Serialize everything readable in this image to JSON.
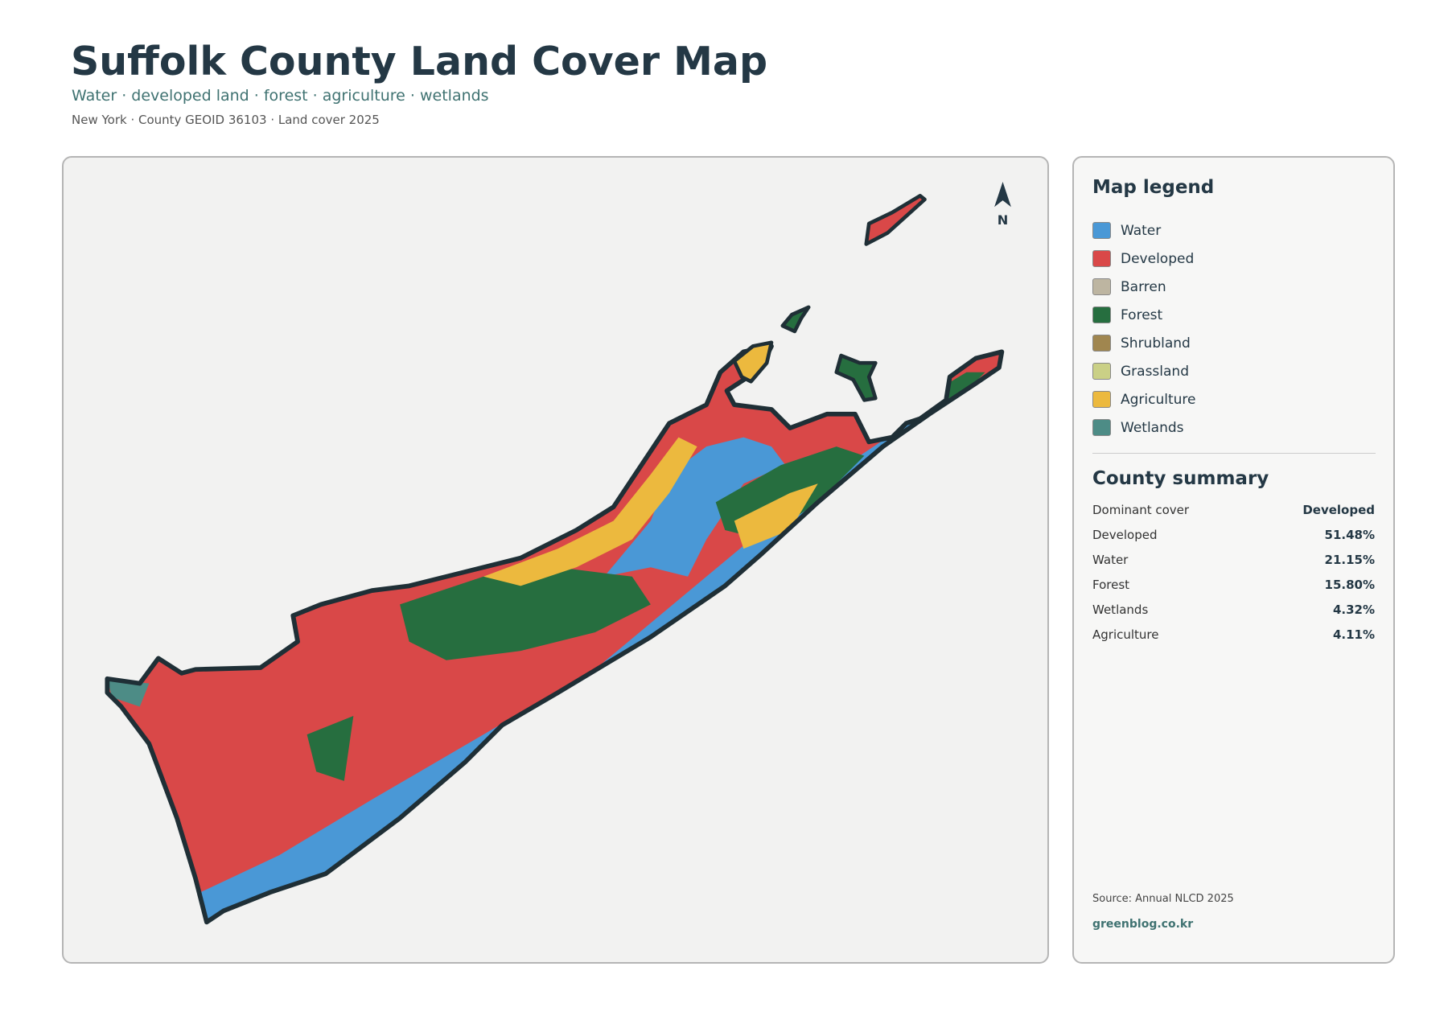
{
  "header": {
    "title": "Suffolk County Land Cover Map",
    "subtitle": "Water · developed land · forest · agriculture · wetlands",
    "meta": "New York · County GEOID 36103 · Land cover 2025"
  },
  "map": {
    "north_label": "N"
  },
  "legend": {
    "title": "Map legend",
    "items": [
      {
        "label": "Water",
        "color": "#4a98d6"
      },
      {
        "label": "Developed",
        "color": "#d94848"
      },
      {
        "label": "Barren",
        "color": "#bdb5a1"
      },
      {
        "label": "Forest",
        "color": "#266e3f"
      },
      {
        "label": "Shrubland",
        "color": "#a0864f"
      },
      {
        "label": "Grassland",
        "color": "#cad086"
      },
      {
        "label": "Agriculture",
        "color": "#ecb93e"
      },
      {
        "label": "Wetlands",
        "color": "#4d8c86"
      }
    ]
  },
  "summary": {
    "title": "County summary",
    "rows": [
      [
        "Dominant cover",
        "Developed"
      ],
      [
        "Developed",
        "51.48%"
      ],
      [
        "Water",
        "21.15%"
      ],
      [
        "Forest",
        "15.80%"
      ],
      [
        "Wetlands",
        "4.32%"
      ],
      [
        "Agriculture",
        "4.11%"
      ]
    ]
  },
  "footer": {
    "source": "Source: Annual NLCD 2025",
    "site": "greenblog.co.kr"
  }
}
